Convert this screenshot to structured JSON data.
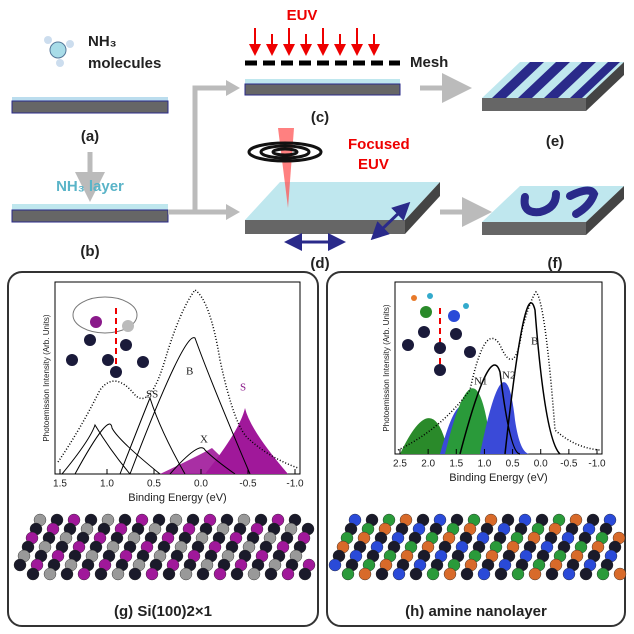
{
  "top": {
    "molecules": [
      "NH₃",
      "molecules"
    ],
    "layer": "NH₃ layer",
    "euv": "EUV",
    "mesh": "Mesh",
    "focused": [
      "Focused",
      "EUV"
    ],
    "panels": [
      "(a)",
      "(b)",
      "(c)",
      "(d)",
      "(e)",
      "(f)"
    ]
  },
  "plot_g": {
    "y_label": "Photoemission Intensity (Arb. Units)",
    "x_label": "Binding Energy (eV)",
    "x_ticks": [
      "1.5",
      "1.0",
      "0.5",
      "0.0",
      "-0.5",
      "-1.0"
    ],
    "peaks": [
      "B",
      "SS",
      "X",
      "S"
    ],
    "caption": "(g) Si(100)2×1"
  },
  "plot_h": {
    "y_label": "Photoemission Intensity (Arb. Units)",
    "x_label": "Binding Energy (eV)",
    "x_ticks": [
      "2.5",
      "2.0",
      "1.5",
      "1.0",
      "0.5",
      "0.0",
      "-0.5",
      "-1.0"
    ],
    "peaks": [
      "N1",
      "N2",
      "B"
    ],
    "caption": "(h) amine nanolayer"
  }
}
